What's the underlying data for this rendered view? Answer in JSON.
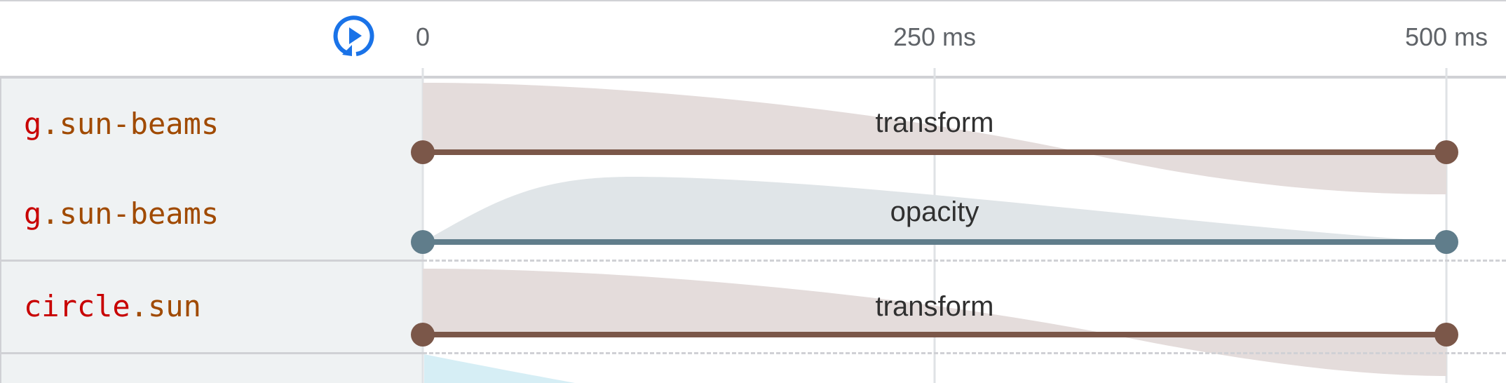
{
  "header": {
    "replay_icon": "replay-play-icon",
    "ticks": [
      {
        "label": "0",
        "ms": 0
      },
      {
        "label": "250 ms",
        "ms": 250
      },
      {
        "label": "500 ms",
        "ms": 500
      }
    ]
  },
  "timeline": {
    "start_ms": 0,
    "end_ms": 500
  },
  "animations": [
    {
      "tag": "g",
      "class": ".sun-beams",
      "property": "transform",
      "start_ms": 0,
      "end_ms": 500,
      "line_color": "#7b5749",
      "fill_color": "#e4dcdb"
    },
    {
      "tag": "g",
      "class": ".sun-beams",
      "property": "opacity",
      "start_ms": 0,
      "end_ms": 500,
      "line_color": "#607d8b",
      "fill_color": "#e0e5e8"
    },
    {
      "tag": "circle",
      "class": ".sun",
      "property": "transform",
      "start_ms": 0,
      "end_ms": 500,
      "line_color": "#7b5749",
      "fill_color": "#e4dcdb"
    }
  ],
  "colors": {
    "accent": "#1a73e8",
    "partial_row_fill": "#d6eef5"
  }
}
